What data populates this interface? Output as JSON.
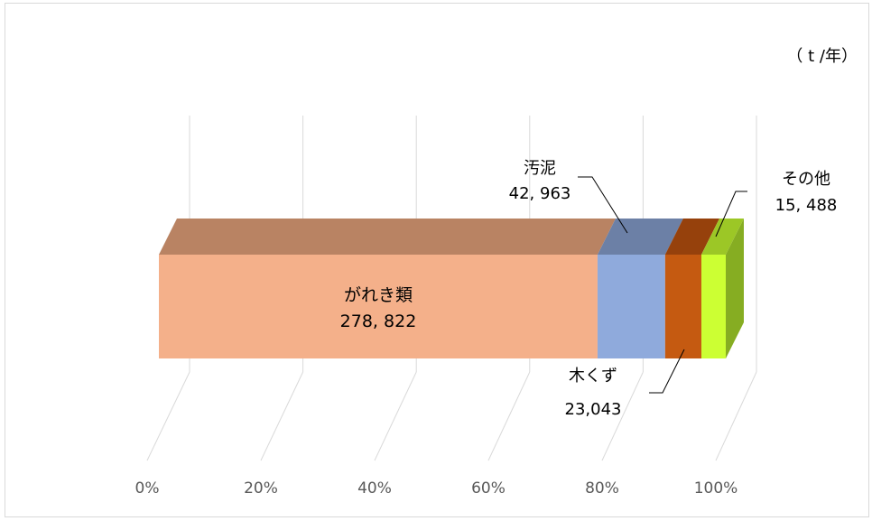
{
  "unit_label": "（ t /年）",
  "chart_data": {
    "type": "bar",
    "orientation": "horizontal-100%-stacked-3d",
    "categories": [
      "がれき類",
      "汚泥",
      "木くず",
      "その他"
    ],
    "values": [
      278822,
      42963,
      23043,
      15488
    ],
    "value_labels": [
      "278, 822",
      "42, 963",
      "23,043",
      "15, 488"
    ],
    "colors": {
      "front": [
        "#f4b08a",
        "#8faadc",
        "#c55a11",
        "#ccff33"
      ],
      "top": [
        "#b98363",
        "#6c80a6",
        "#96410c",
        "#9cc726"
      ],
      "side": [
        "#b98363",
        "#6c80a6",
        "#96410c",
        "#86ad22"
      ]
    },
    "x_ticks": [
      "0%",
      "20%",
      "40%",
      "60%",
      "80%",
      "100%"
    ],
    "x_range": [
      0,
      100
    ],
    "grid": true,
    "legend": "none"
  }
}
